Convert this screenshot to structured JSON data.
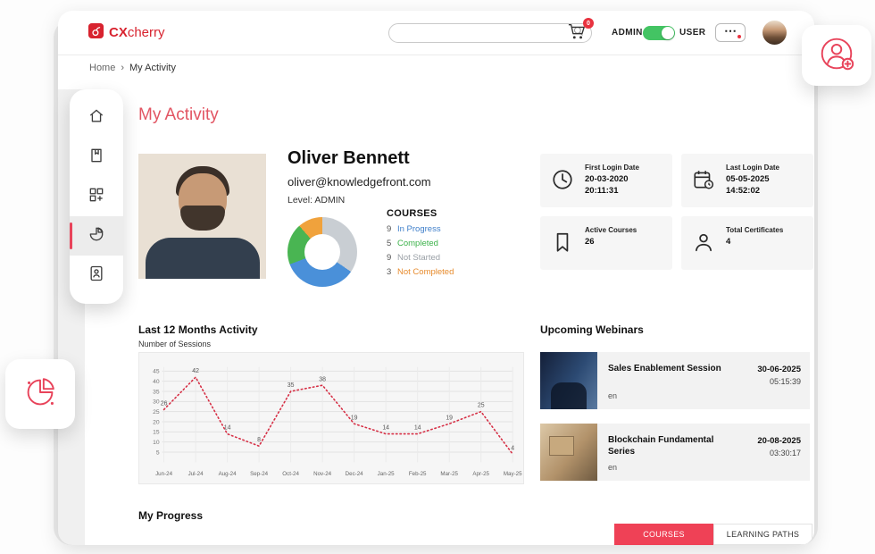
{
  "accent": "#e8435a",
  "brand": {
    "cx": "CX",
    "rest": "cherry"
  },
  "header": {
    "search_placeholder": "",
    "cart_badge": "0",
    "admin_label": "ADMIN",
    "user_label": "USER"
  },
  "breadcrumb": {
    "home": "Home",
    "separator": "›",
    "current": "My Activity"
  },
  "page_title": "My Activity",
  "profile": {
    "name": "Oliver Bennett",
    "email": "oliver@knowledgefront.com",
    "level": "Level: ADMIN",
    "courses_heading": "COURSES",
    "legend": [
      {
        "count": "9",
        "label": "In Progress",
        "color": "#3f7fca"
      },
      {
        "count": "5",
        "label": "Completed",
        "color": "#3cb24a"
      },
      {
        "count": "9",
        "label": "Not Started",
        "color": "#9aa0a6"
      },
      {
        "count": "3",
        "label": "Not Completed",
        "color": "#e78b2d"
      }
    ],
    "donut": {
      "segments": [
        {
          "name": "Not Started",
          "value": 9,
          "color": "#c9ced3"
        },
        {
          "name": "In Progress",
          "value": 9,
          "color": "#4a90d9"
        },
        {
          "name": "Completed",
          "value": 5,
          "color": "#49b552"
        },
        {
          "name": "Not Completed",
          "value": 3,
          "color": "#f0a23c"
        }
      ]
    }
  },
  "stats": [
    {
      "label": "First Login Date",
      "value": "20-03-2020",
      "sub": "20:11:31"
    },
    {
      "label": "Last Login Date",
      "value": "05-05-2025",
      "sub": "14:52:02"
    },
    {
      "label": "Active Courses",
      "value": "26",
      "sub": ""
    },
    {
      "label": "Total Certificates",
      "value": "4",
      "sub": ""
    }
  ],
  "activity": {
    "title": "Last 12 Months Activity",
    "subtitle": "Number of Sessions"
  },
  "chart_data": {
    "type": "line",
    "title": "Last 12 Months Activity",
    "ylabel": "Number of Sessions",
    "x": [
      "Jun-24",
      "Jul-24",
      "Aug-24",
      "Sep-24",
      "Oct-24",
      "Nov-24",
      "Dec-24",
      "Jan-25",
      "Feb-25",
      "Mar-25",
      "Apr-25",
      "May-25"
    ],
    "values": [
      26,
      42,
      14,
      8,
      35,
      38,
      19,
      14,
      14,
      19,
      25,
      4
    ],
    "yticks": [
      5,
      10,
      15,
      20,
      25,
      30,
      35,
      40,
      45
    ],
    "ylim": [
      0,
      47
    ],
    "line_color": "#d62f45",
    "line_style": "dotted",
    "grid": true,
    "legend_position": "none"
  },
  "webinars": {
    "title": "Upcoming Webinars",
    "items": [
      {
        "title": "Sales Enablement Session",
        "lang": "en",
        "date": "30-06-2025",
        "time": "05:15:39"
      },
      {
        "title": "Blockchain Fundamental Series",
        "lang": "en",
        "date": "20-08-2025",
        "time": "03:30:17"
      }
    ]
  },
  "progress": {
    "title": "My Progress",
    "tabs": [
      {
        "label": "COURSES",
        "active": true
      },
      {
        "label": "LEARNING PATHS",
        "active": false
      }
    ]
  }
}
